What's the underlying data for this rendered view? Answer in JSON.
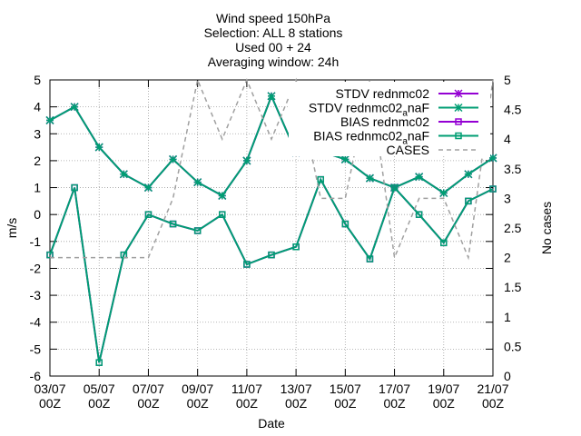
{
  "chart_data": {
    "type": "line",
    "title_lines": [
      "Wind speed 150hPa",
      "Selection: ALL      8 stations",
      "Used 00 + 24",
      "Averaging window: 24h"
    ],
    "xlabel": "Date",
    "ylabel": "m/s",
    "y2label": "No cases",
    "x_tick_labels": [
      {
        "day": 0,
        "top": "03/07",
        "bottom": "00Z"
      },
      {
        "day": 2,
        "top": "05/07",
        "bottom": "00Z"
      },
      {
        "day": 4,
        "top": "07/07",
        "bottom": "00Z"
      },
      {
        "day": 6,
        "top": "09/07",
        "bottom": "00Z"
      },
      {
        "day": 8,
        "top": "11/07",
        "bottom": "00Z"
      },
      {
        "day": 10,
        "top": "13/07",
        "bottom": "00Z"
      },
      {
        "day": 12,
        "top": "15/07",
        "bottom": "00Z"
      },
      {
        "day": 14,
        "top": "17/07",
        "bottom": "00Z"
      },
      {
        "day": 16,
        "top": "19/07",
        "bottom": "00Z"
      },
      {
        "day": 18,
        "top": "21/07",
        "bottom": "00Z"
      }
    ],
    "xlim": [
      0,
      18
    ],
    "ylim": [
      -6,
      5
    ],
    "y_ticks": [
      -6,
      -5,
      -4,
      -3,
      -2,
      -1,
      0,
      1,
      2,
      3,
      4,
      5
    ],
    "y2lim": [
      0,
      5
    ],
    "y2_ticks": [
      0,
      0.5,
      1,
      1.5,
      2,
      2.5,
      3,
      3.5,
      4,
      4.5,
      5
    ],
    "grid": true,
    "legend_position": "top-right",
    "series": [
      {
        "name": "STDV rednmc02",
        "color": "#9400d3",
        "marker": "star",
        "axis": "y",
        "x": [
          0,
          1,
          2,
          3,
          4,
          5,
          6,
          7,
          8,
          9,
          10,
          11,
          12,
          13,
          14,
          15,
          16,
          17,
          18
        ],
        "values": [
          3.5,
          4.0,
          2.5,
          1.5,
          1.0,
          2.05,
          1.2,
          0.7,
          2.0,
          4.4,
          2.3,
          2.35,
          2.05,
          1.35,
          1.0,
          1.4,
          0.8,
          1.5,
          2.1
        ]
      },
      {
        "name": "STDV rednmc02",
        "name_sub": "a",
        "name_suffix": "naF",
        "color": "#009e73",
        "marker": "star",
        "axis": "y",
        "x": [
          0,
          1,
          2,
          3,
          4,
          5,
          6,
          7,
          8,
          9,
          10,
          11,
          12,
          13,
          14,
          15,
          16,
          17,
          18
        ],
        "values": [
          3.5,
          4.0,
          2.5,
          1.5,
          1.0,
          2.05,
          1.2,
          0.7,
          2.0,
          4.4,
          2.3,
          2.35,
          2.05,
          1.35,
          1.0,
          1.4,
          0.8,
          1.5,
          2.1
        ]
      },
      {
        "name": "BIAS rednmc02",
        "color": "#9400d3",
        "marker": "square",
        "axis": "y",
        "x": [
          0,
          1,
          2,
          3,
          4,
          5,
          6,
          7,
          8,
          9,
          10,
          11,
          12,
          13,
          14,
          15,
          16,
          17,
          18
        ],
        "values": [
          -1.5,
          1.0,
          -5.5,
          -1.5,
          0.0,
          -0.35,
          -0.6,
          0.0,
          -1.85,
          -1.5,
          -1.2,
          1.3,
          -0.35,
          -1.65,
          1.0,
          0.0,
          -1.05,
          0.5,
          0.95
        ]
      },
      {
        "name": "BIAS rednmc02",
        "name_sub": "a",
        "name_suffix": "naF",
        "color": "#009e73",
        "marker": "square",
        "axis": "y",
        "x": [
          0,
          1,
          2,
          3,
          4,
          5,
          6,
          7,
          8,
          9,
          10,
          11,
          12,
          13,
          14,
          15,
          16,
          17,
          18
        ],
        "values": [
          -1.5,
          1.0,
          -5.5,
          -1.5,
          0.0,
          -0.35,
          -0.6,
          0.0,
          -1.85,
          -1.5,
          -1.2,
          1.3,
          -0.35,
          -1.65,
          1.0,
          0.0,
          -1.05,
          0.5,
          0.95
        ]
      },
      {
        "name": "CASES",
        "color": "#a0a0a0",
        "marker": "none",
        "dashed": true,
        "axis": "y2",
        "x": [
          0,
          1,
          2,
          3,
          4,
          5,
          6,
          7,
          8,
          9,
          10,
          11,
          12,
          13,
          14,
          15,
          16,
          17,
          18
        ],
        "values": [
          2,
          2,
          2,
          2,
          2,
          3,
          5,
          4,
          5,
          4,
          5,
          3,
          3,
          5,
          2,
          3,
          3,
          2,
          5
        ]
      }
    ]
  }
}
